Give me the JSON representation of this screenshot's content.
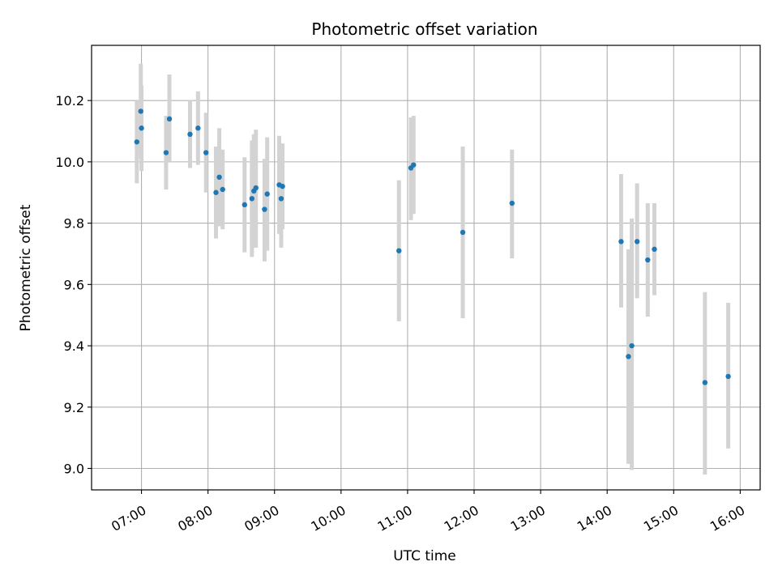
{
  "chart_data": {
    "type": "scatter",
    "title": "Photometric offset variation",
    "xlabel": "UTC time",
    "ylabel": "Photometric offset",
    "x_unit": "hours_utc",
    "xlim": [
      6.25,
      16.3
    ],
    "ylim": [
      8.93,
      10.38
    ],
    "grid": true,
    "x_ticks": [
      {
        "value": 7,
        "label": "07:00"
      },
      {
        "value": 8,
        "label": "08:00"
      },
      {
        "value": 9,
        "label": "09:00"
      },
      {
        "value": 10,
        "label": "10:00"
      },
      {
        "value": 11,
        "label": "11:00"
      },
      {
        "value": 12,
        "label": "12:00"
      },
      {
        "value": 13,
        "label": "13:00"
      },
      {
        "value": 14,
        "label": "14:00"
      },
      {
        "value": 15,
        "label": "15:00"
      },
      {
        "value": 16,
        "label": "16:00"
      }
    ],
    "y_ticks": [
      {
        "value": 9.0,
        "label": "9.0"
      },
      {
        "value": 9.2,
        "label": "9.2"
      },
      {
        "value": 9.4,
        "label": "9.4"
      },
      {
        "value": 9.6,
        "label": "9.6"
      },
      {
        "value": 9.8,
        "label": "9.8"
      },
      {
        "value": 10.0,
        "label": "10.0"
      },
      {
        "value": 10.2,
        "label": "10.2"
      }
    ],
    "colors": {
      "point": "#1f77b4",
      "errorbar": "#d3d3d3",
      "grid": "#b0b0b0"
    },
    "points": [
      {
        "x": 6.93,
        "y": 10.065,
        "ylo": 9.93,
        "yhi": 10.2
      },
      {
        "x": 6.99,
        "y": 10.165,
        "ylo": 10.01,
        "yhi": 10.32
      },
      {
        "x": 7.0,
        "y": 10.11,
        "ylo": 9.97,
        "yhi": 10.25
      },
      {
        "x": 7.37,
        "y": 10.03,
        "ylo": 9.91,
        "yhi": 10.15
      },
      {
        "x": 7.42,
        "y": 10.14,
        "ylo": 10.0,
        "yhi": 10.285
      },
      {
        "x": 7.73,
        "y": 10.09,
        "ylo": 9.98,
        "yhi": 10.2
      },
      {
        "x": 7.85,
        "y": 10.11,
        "ylo": 9.99,
        "yhi": 10.23
      },
      {
        "x": 7.97,
        "y": 10.03,
        "ylo": 9.9,
        "yhi": 10.16
      },
      {
        "x": 8.12,
        "y": 9.9,
        "ylo": 9.75,
        "yhi": 10.05
      },
      {
        "x": 8.17,
        "y": 9.95,
        "ylo": 9.79,
        "yhi": 10.11
      },
      {
        "x": 8.22,
        "y": 9.91,
        "ylo": 9.78,
        "yhi": 10.04
      },
      {
        "x": 8.55,
        "y": 9.86,
        "ylo": 9.705,
        "yhi": 10.015
      },
      {
        "x": 8.66,
        "y": 9.88,
        "ylo": 9.69,
        "yhi": 10.07
      },
      {
        "x": 8.69,
        "y": 9.905,
        "ylo": 9.72,
        "yhi": 10.09
      },
      {
        "x": 8.72,
        "y": 9.915,
        "ylo": 9.72,
        "yhi": 10.105
      },
      {
        "x": 8.85,
        "y": 9.845,
        "ylo": 9.675,
        "yhi": 10.01
      },
      {
        "x": 8.89,
        "y": 9.895,
        "ylo": 9.71,
        "yhi": 10.08
      },
      {
        "x": 9.07,
        "y": 9.925,
        "ylo": 9.765,
        "yhi": 10.085
      },
      {
        "x": 9.1,
        "y": 9.88,
        "ylo": 9.72,
        "yhi": 10.04
      },
      {
        "x": 9.12,
        "y": 9.92,
        "ylo": 9.78,
        "yhi": 10.06
      },
      {
        "x": 10.87,
        "y": 9.71,
        "ylo": 9.48,
        "yhi": 9.94
      },
      {
        "x": 11.05,
        "y": 9.98,
        "ylo": 9.81,
        "yhi": 10.145
      },
      {
        "x": 11.09,
        "y": 9.99,
        "ylo": 9.83,
        "yhi": 10.15
      },
      {
        "x": 11.83,
        "y": 9.77,
        "ylo": 9.49,
        "yhi": 10.05
      },
      {
        "x": 12.57,
        "y": 9.865,
        "ylo": 9.685,
        "yhi": 10.04
      },
      {
        "x": 14.21,
        "y": 9.74,
        "ylo": 9.525,
        "yhi": 9.96
      },
      {
        "x": 14.32,
        "y": 9.365,
        "ylo": 9.015,
        "yhi": 9.715
      },
      {
        "x": 14.37,
        "y": 9.4,
        "ylo": 8.995,
        "yhi": 9.815
      },
      {
        "x": 14.45,
        "y": 9.74,
        "ylo": 9.555,
        "yhi": 9.93
      },
      {
        "x": 14.61,
        "y": 9.68,
        "ylo": 9.495,
        "yhi": 9.865
      },
      {
        "x": 14.71,
        "y": 9.715,
        "ylo": 9.565,
        "yhi": 9.865
      },
      {
        "x": 15.47,
        "y": 9.28,
        "ylo": 8.98,
        "yhi": 9.575
      },
      {
        "x": 15.82,
        "y": 9.3,
        "ylo": 9.065,
        "yhi": 9.54
      }
    ]
  }
}
